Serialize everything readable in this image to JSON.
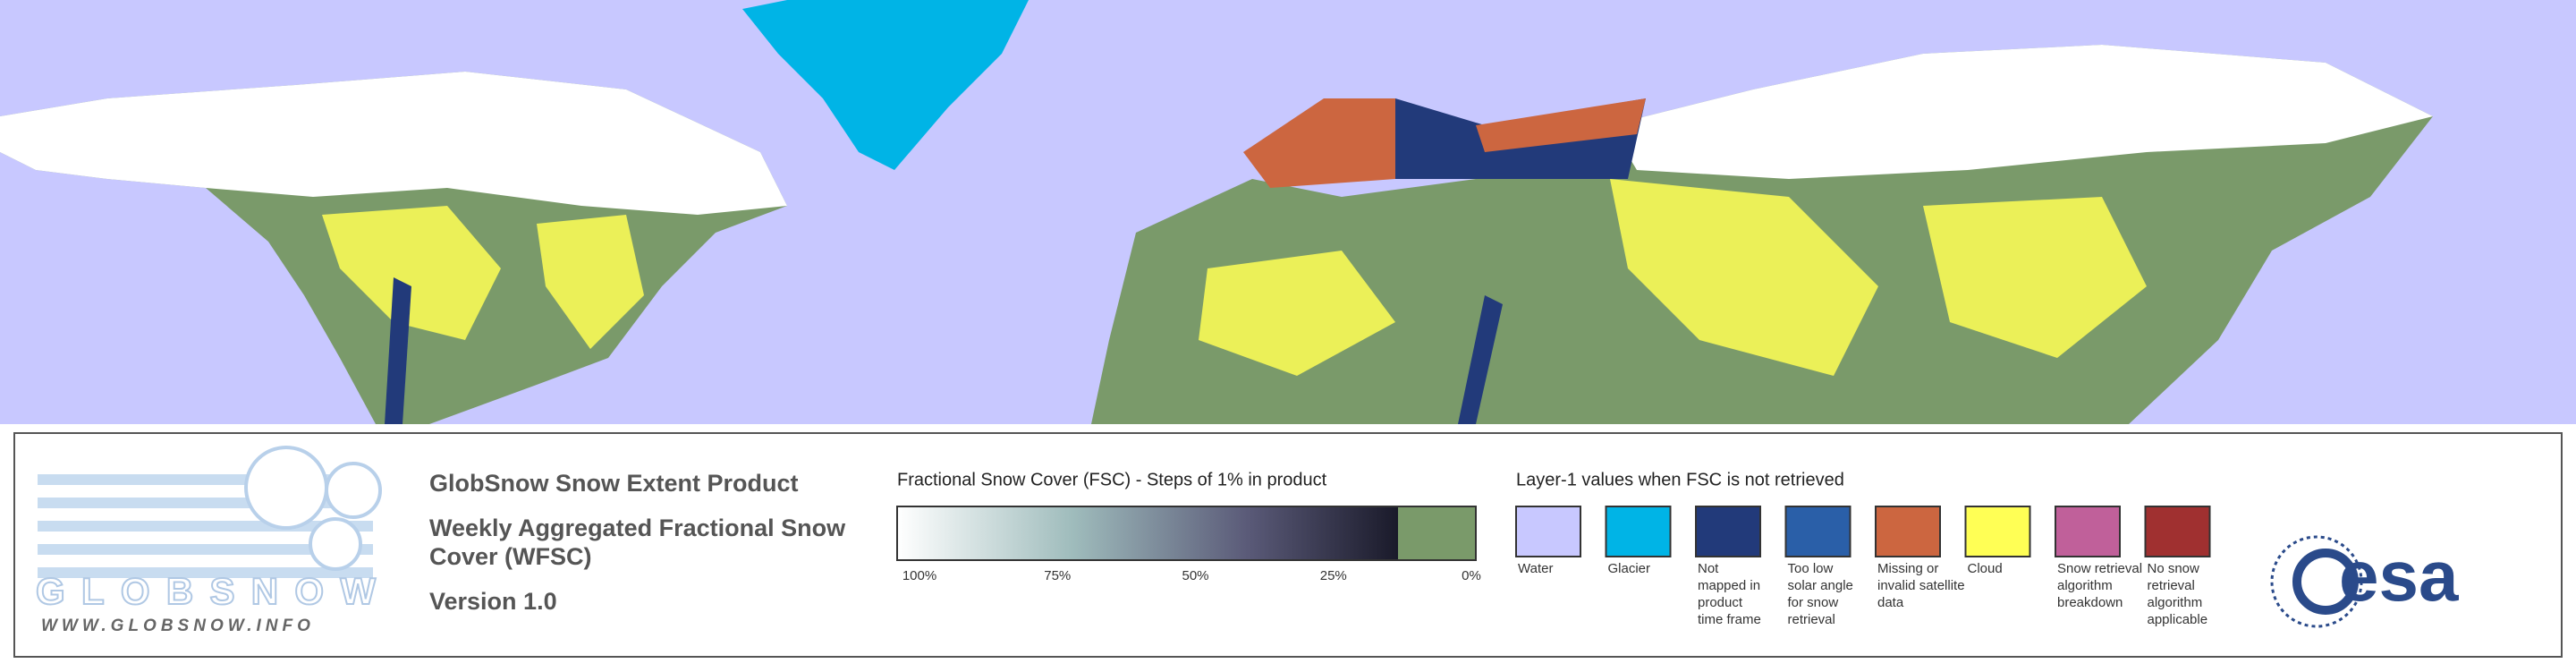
{
  "logo": {
    "name": "GLOBSNOW",
    "url": "WWW.GLOBSNOW.INFO"
  },
  "product": {
    "title": "GlobSnow Snow Extent Product",
    "subtitle_lines": [
      "Weekly Aggregated Fractional Snow",
      "Cover (WFSC)"
    ],
    "version": "Version 1.0"
  },
  "colorbar": {
    "title": "Fractional Snow Cover (FSC) - Steps of 1% in product",
    "ticks": [
      "100%",
      "75%",
      "50%",
      "25%",
      "0%"
    ]
  },
  "layer1": {
    "title": "Layer-1 values when FSC is not retrieved",
    "classes": [
      {
        "lines": [
          "Water"
        ],
        "color": "#c8c8ff"
      },
      {
        "lines": [
          "Glacier"
        ],
        "color": "#00b4e6"
      },
      {
        "lines": [
          "Not",
          "mapped in",
          "product",
          "time frame"
        ],
        "color": "#223a7a"
      },
      {
        "lines": [
          "Too low",
          "solar angle",
          "for snow",
          "retrieval"
        ],
        "color": "#2a5fa8"
      },
      {
        "lines": [
          "Missing or",
          "invalid satellite",
          "data"
        ],
        "color": "#cc6640"
      },
      {
        "lines": [
          "Cloud"
        ],
        "color": "#ffff55"
      },
      {
        "lines": [
          "Snow retrieval",
          "algorithm",
          "breakdown"
        ],
        "color": "#c0609a"
      },
      {
        "lines": [
          "No snow",
          "retrieval",
          "algorithm",
          "applicable"
        ],
        "color": "#a03030"
      }
    ]
  },
  "agency": "esa"
}
